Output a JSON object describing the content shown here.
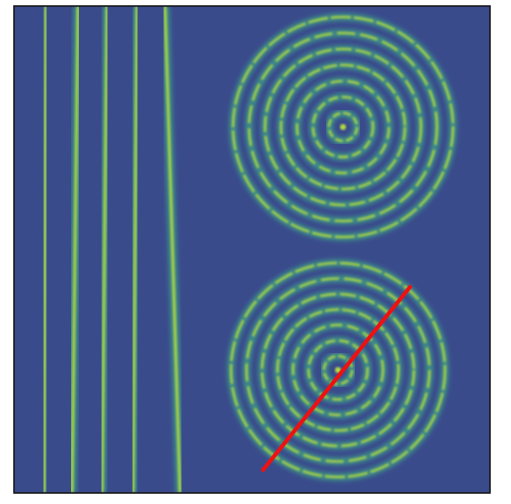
{
  "image": {
    "background_color": "#ffffff",
    "field_color": "#3a4b8c",
    "ring_color": "#3fbf86",
    "ring_highlight_color": "#b9de3a",
    "frame_color": "#111111",
    "overlay_line_color": "#ee1111"
  },
  "vertical_bands": {
    "count": 5
  },
  "ring_patterns": [
    {
      "name": "upper-ring-pattern",
      "ring_count": 7
    },
    {
      "name": "lower-ring-pattern",
      "ring_count": 7
    }
  ],
  "overlay": {
    "type": "line",
    "color": "#ee1111"
  }
}
